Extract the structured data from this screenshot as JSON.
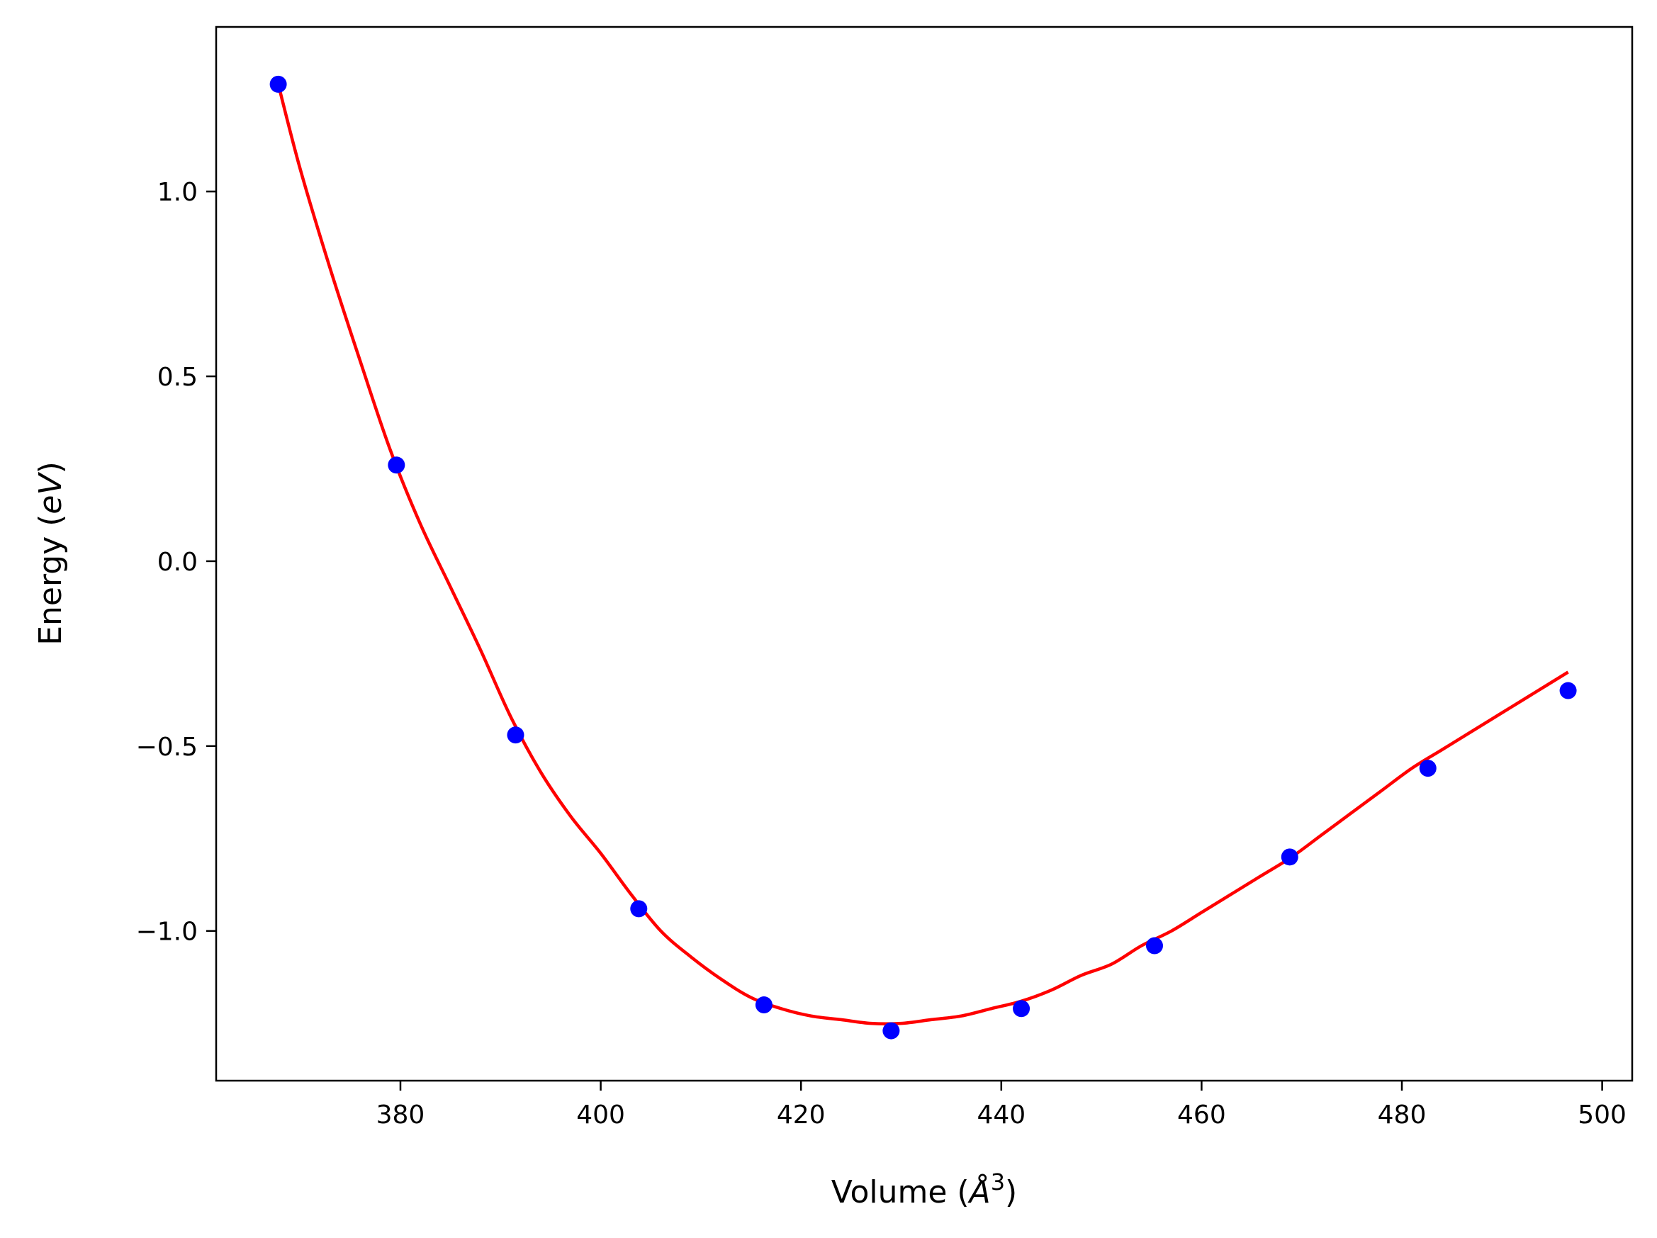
{
  "chart_data": {
    "type": "scatter",
    "xlabel": "Volume (Å³)",
    "xlabel_parts": {
      "prefix": "Volume (",
      "symbol": "Å",
      "sup": "3",
      "suffix": ")"
    },
    "ylabel": "Energy (eV)",
    "ylabel_parts": {
      "prefix": "Energy (",
      "symbol": "eV",
      "suffix": ")"
    },
    "xlim": [
      361.6,
      503.0
    ],
    "ylim": [
      -1.405,
      1.445
    ],
    "xticks": [
      380,
      400,
      420,
      440,
      460,
      480,
      500
    ],
    "xtick_labels": [
      "380",
      "400",
      "420",
      "440",
      "460",
      "480",
      "500"
    ],
    "yticks": [
      -1.0,
      -0.5,
      0.0,
      0.5,
      1.0
    ],
    "ytick_labels": [
      "−1.0",
      "−0.5",
      "0.0",
      "0.5",
      "1.0"
    ],
    "grid": false,
    "legend": "none",
    "colors": {
      "points": "#0000ff",
      "fit": "#ff0000",
      "axes": "#000000"
    },
    "series": [
      {
        "kind": "points",
        "x": [
          367.8,
          379.6,
          391.5,
          403.8,
          416.3,
          429.0,
          442.0,
          455.3,
          468.8,
          482.6,
          496.6
        ],
        "y": [
          1.29,
          0.26,
          -0.47,
          -0.94,
          -1.2,
          -1.27,
          -1.21,
          -1.04,
          -0.8,
          -0.56,
          -0.35
        ]
      },
      {
        "kind": "fit_line",
        "x": [
          367.8,
          370.0,
          373.0,
          376.0,
          379.0,
          382.0,
          385.0,
          388.0,
          391.0,
          394.0,
          397.0,
          400.0,
          403.0,
          406.0,
          409.0,
          412.0,
          415.0,
          418.0,
          421.0,
          424.0,
          427.0,
          430.0,
          433.0,
          436.0,
          439.0,
          442.0,
          445.0,
          448.0,
          451.0,
          454.0,
          457.0,
          460.0,
          463.0,
          466.0,
          469.0,
          472.0,
          475.0,
          478.0,
          481.0,
          484.0,
          487.0,
          490.0,
          493.0,
          496.6
        ],
        "y": [
          1.29,
          1.06,
          0.79,
          0.54,
          0.3,
          0.1,
          -0.07,
          -0.24,
          -0.42,
          -0.57,
          -0.69,
          -0.79,
          -0.9,
          -1.0,
          -1.07,
          -1.13,
          -1.18,
          -1.21,
          -1.23,
          -1.24,
          -1.25,
          -1.25,
          -1.24,
          -1.23,
          -1.21,
          -1.19,
          -1.16,
          -1.12,
          -1.09,
          -1.04,
          -1.0,
          -0.95,
          -0.9,
          -0.85,
          -0.8,
          -0.74,
          -0.68,
          -0.62,
          -0.56,
          -0.51,
          -0.46,
          -0.41,
          -0.36,
          -0.3
        ]
      }
    ]
  }
}
